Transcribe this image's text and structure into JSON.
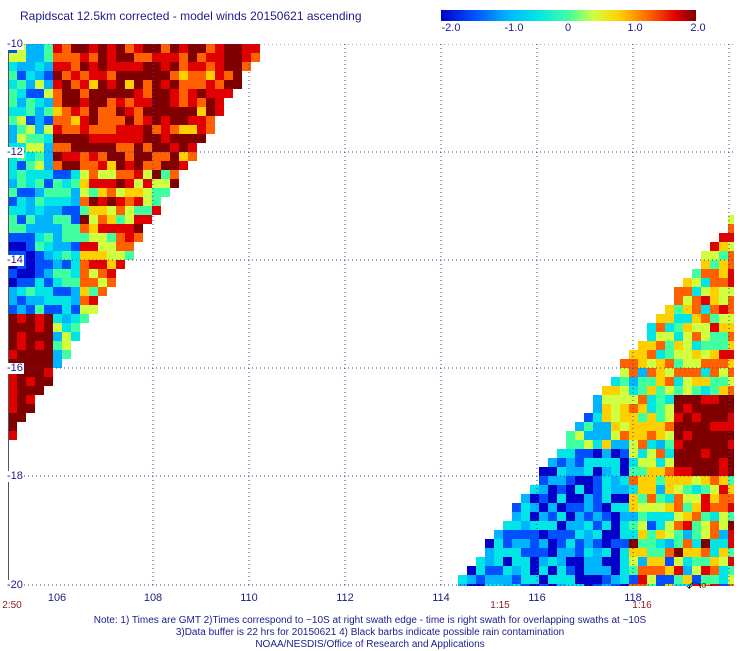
{
  "title": "Rapidscat 12.5km corrected - model winds 20150621 ascending",
  "colorbar": {
    "ticks": [
      "-2.0",
      "-1.0",
      "0",
      "1.0",
      "2.0"
    ],
    "min": -2.0,
    "max": 2.0
  },
  "map": {
    "lat_labels": [
      "-10",
      "-12",
      "-14",
      "-16",
      "-18",
      "-20"
    ],
    "lon_labels": [
      "106",
      "108",
      "110",
      "112",
      "114",
      "116",
      "118"
    ],
    "time_labels": [
      "2:50",
      "1:15",
      "1:16"
    ],
    "lon_range": [
      104.9,
      119.9
    ],
    "lat_range": [
      -10,
      -20
    ]
  },
  "note": {
    "line1": "Note: 1) Times are GMT 2)Times correspond to ~10S at right swath edge - time is right swath for overlapping swaths at ~10S",
    "line2": "3)Data buffer is 22 hrs for 20150621 4) Black barbs indicate possible rain contamination",
    "line3": "NOAA/NESDIS/Office of Research and Applications"
  },
  "palette": [
    "#0000c8",
    "#0050ff",
    "#00b4ff",
    "#00e6e6",
    "#40ffa0",
    "#d0ff40",
    "#ffd000",
    "#ff6000",
    "#e00000",
    "#800000"
  ]
}
